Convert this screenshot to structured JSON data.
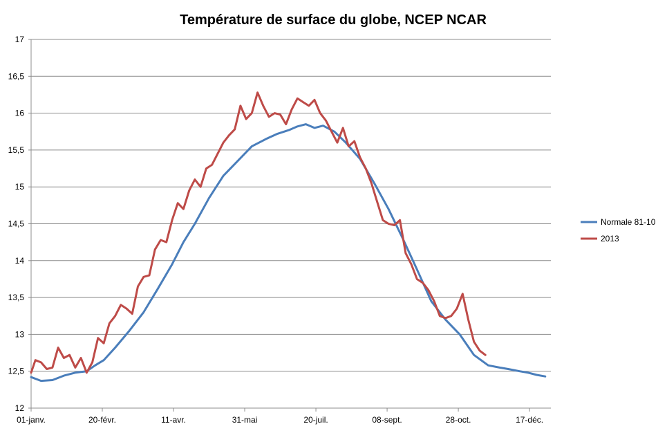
{
  "chart_data": {
    "type": "line",
    "title": "Température de surface du globe, NCEP NCAR",
    "xlabel": "",
    "ylabel": "",
    "ylim": [
      12,
      17
    ],
    "yticks": [
      "12",
      "12,5",
      "13",
      "13,5",
      "14",
      "14,5",
      "15",
      "15,5",
      "16",
      "16,5",
      "17"
    ],
    "xlim": [
      1,
      366
    ],
    "xticks": [
      {
        "day": 1,
        "label": "01-janv."
      },
      {
        "day": 51,
        "label": "20-févr."
      },
      {
        "day": 101,
        "label": "11-avr."
      },
      {
        "day": 151,
        "label": "31-mai"
      },
      {
        "day": 201,
        "label": "20-juil."
      },
      {
        "day": 251,
        "label": "08-sept."
      },
      {
        "day": 301,
        "label": "28-oct."
      },
      {
        "day": 351,
        "label": "17-déc."
      }
    ],
    "grid": true,
    "legend_position": "right",
    "series": [
      {
        "name": "Normale 81-10",
        "color": "#4a7ebb",
        "x": [
          1,
          8,
          16,
          24,
          32,
          40,
          46,
          52,
          60,
          70,
          80,
          90,
          100,
          108,
          116,
          126,
          136,
          146,
          156,
          166,
          174,
          182,
          188,
          194,
          200,
          206,
          214,
          222,
          232,
          242,
          252,
          262,
          272,
          282,
          292,
          302,
          312,
          322,
          330,
          336,
          344,
          350,
          356,
          362
        ],
        "y": [
          12.42,
          12.37,
          12.38,
          12.44,
          12.48,
          12.5,
          12.58,
          12.65,
          12.82,
          13.05,
          13.3,
          13.62,
          13.95,
          14.25,
          14.5,
          14.85,
          15.15,
          15.35,
          15.55,
          15.65,
          15.72,
          15.77,
          15.82,
          15.85,
          15.8,
          15.83,
          15.75,
          15.6,
          15.38,
          15.05,
          14.7,
          14.3,
          13.88,
          13.45,
          13.2,
          13.0,
          12.72,
          12.58,
          12.55,
          12.53,
          12.5,
          12.48,
          12.45,
          12.43
        ]
      },
      {
        "name": "2013",
        "color": "#be4b48",
        "x": [
          1,
          4,
          8,
          12,
          16,
          20,
          24,
          28,
          32,
          36,
          40,
          44,
          48,
          52,
          56,
          60,
          64,
          68,
          72,
          76,
          80,
          84,
          88,
          92,
          96,
          100,
          104,
          108,
          112,
          116,
          120,
          124,
          128,
          132,
          136,
          140,
          144,
          148,
          152,
          156,
          160,
          164,
          168,
          172,
          176,
          180,
          184,
          188,
          192,
          196,
          200,
          204,
          208,
          212,
          216,
          220,
          224,
          228,
          232,
          236,
          240,
          244,
          248,
          252,
          256,
          260,
          264,
          268,
          272,
          276,
          280,
          284,
          288,
          292,
          296,
          300,
          304,
          308,
          312,
          316,
          320
        ],
        "y": [
          12.48,
          12.65,
          12.62,
          12.53,
          12.55,
          12.82,
          12.68,
          12.72,
          12.55,
          12.68,
          12.48,
          12.62,
          12.95,
          12.88,
          13.15,
          13.25,
          13.4,
          13.35,
          13.28,
          13.65,
          13.78,
          13.8,
          14.15,
          14.28,
          14.25,
          14.55,
          14.78,
          14.7,
          14.95,
          15.1,
          15.0,
          15.25,
          15.3,
          15.45,
          15.6,
          15.7,
          15.78,
          16.1,
          15.92,
          16.0,
          16.28,
          16.1,
          15.95,
          16.0,
          15.98,
          15.85,
          16.05,
          16.2,
          16.15,
          16.1,
          16.18,
          16.0,
          15.9,
          15.75,
          15.6,
          15.8,
          15.55,
          15.62,
          15.4,
          15.25,
          15.05,
          14.8,
          14.55,
          14.5,
          14.48,
          14.55,
          14.1,
          13.95,
          13.75,
          13.7,
          13.6,
          13.45,
          13.25,
          13.22,
          13.25,
          13.35,
          13.55,
          13.2,
          12.9,
          12.78,
          12.72
        ]
      }
    ]
  }
}
